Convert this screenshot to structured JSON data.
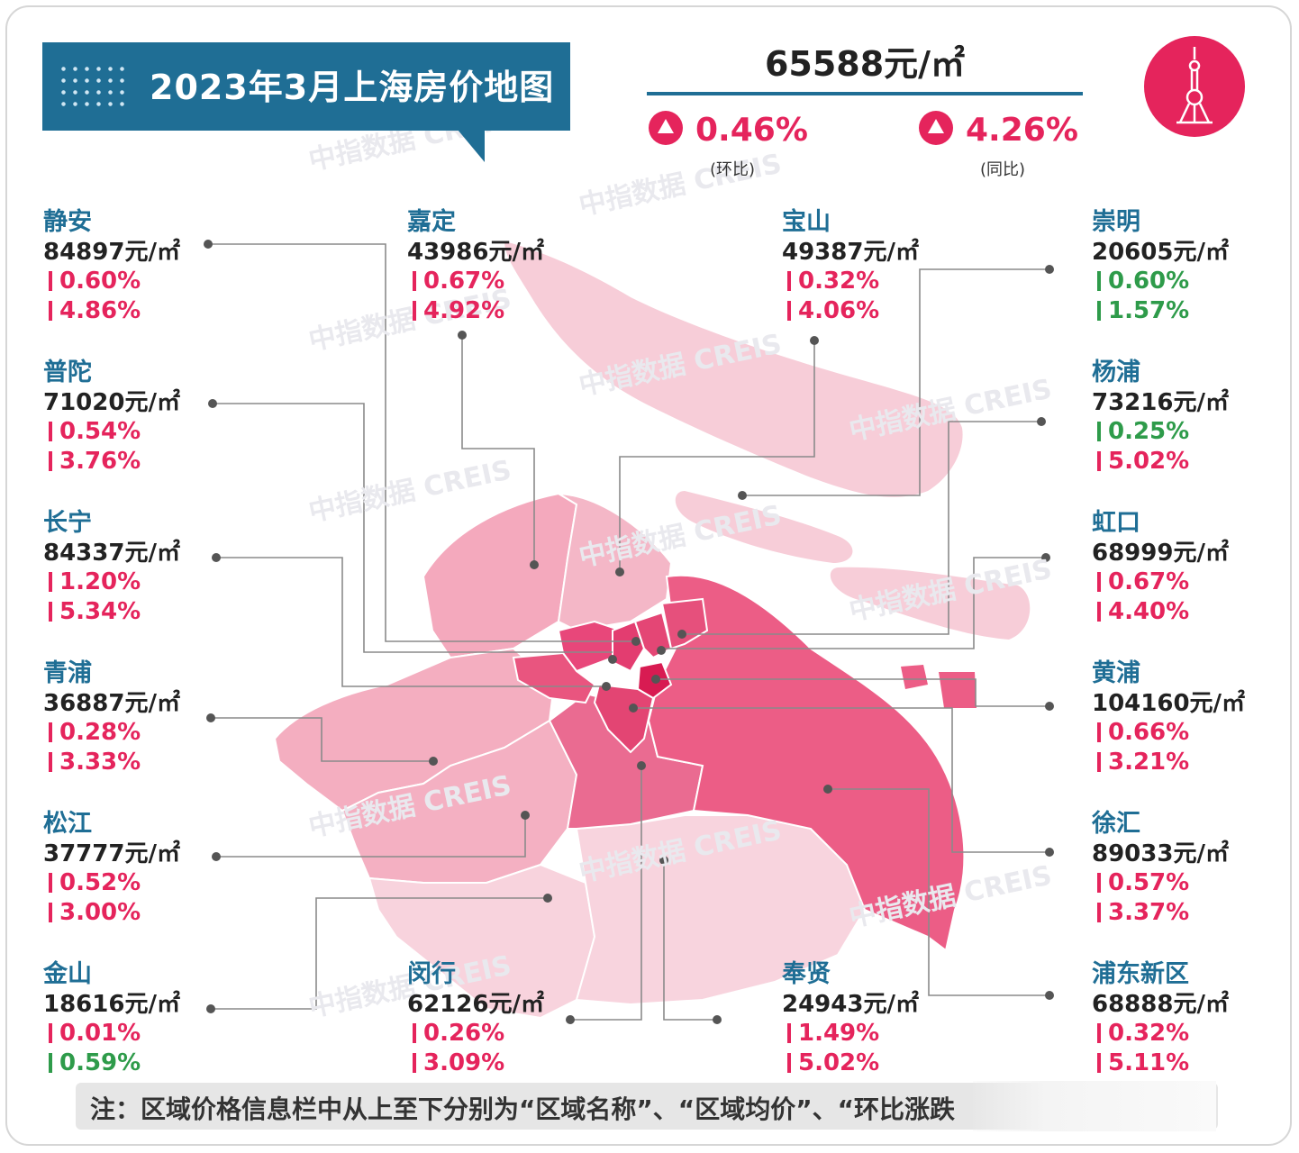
{
  "header": {
    "title": "2023年3月上海房价地图",
    "avg_price": "65588元/㎡",
    "mom": "0.46%",
    "mom_label": "(环比)",
    "yoy": "4.26%",
    "yoy_label": "(同比)"
  },
  "colors": {
    "accent_blue": "#1f6e95",
    "up_red": "#e5245c",
    "down_green": "#2e9b4a"
  },
  "watermark": "中指数据 CREIS",
  "districts": [
    {
      "name": "静安",
      "price": "84897元/㎡",
      "mom": "0.60%",
      "mom_dir": "up",
      "yoy": "4.86%",
      "yoy_dir": "up"
    },
    {
      "name": "普陀",
      "price": "71020元/㎡",
      "mom": "0.54%",
      "mom_dir": "up",
      "yoy": "3.76%",
      "yoy_dir": "up"
    },
    {
      "name": "长宁",
      "price": "84337元/㎡",
      "mom": "1.20%",
      "mom_dir": "up",
      "yoy": "5.34%",
      "yoy_dir": "up"
    },
    {
      "name": "青浦",
      "price": "36887元/㎡",
      "mom": "0.28%",
      "mom_dir": "up",
      "yoy": "3.33%",
      "yoy_dir": "up"
    },
    {
      "name": "松江",
      "price": "37777元/㎡",
      "mom": "0.52%",
      "mom_dir": "up",
      "yoy": "3.00%",
      "yoy_dir": "up"
    },
    {
      "name": "金山",
      "price": "18616元/㎡",
      "mom": "0.01%",
      "mom_dir": "up",
      "yoy": "0.59%",
      "yoy_dir": "down"
    },
    {
      "name": "嘉定",
      "price": "43986元/㎡",
      "mom": "0.67%",
      "mom_dir": "up",
      "yoy": "4.92%",
      "yoy_dir": "up"
    },
    {
      "name": "闵行",
      "price": "62126元/㎡",
      "mom": "0.26%",
      "mom_dir": "up",
      "yoy": "3.09%",
      "yoy_dir": "up"
    },
    {
      "name": "宝山",
      "price": "49387元/㎡",
      "mom": "0.32%",
      "mom_dir": "up",
      "yoy": "4.06%",
      "yoy_dir": "up"
    },
    {
      "name": "奉贤",
      "price": "24943元/㎡",
      "mom": "1.49%",
      "mom_dir": "up",
      "yoy": "5.02%",
      "yoy_dir": "up"
    },
    {
      "name": "崇明",
      "price": "20605元/㎡",
      "mom": "0.60%",
      "mom_dir": "down",
      "yoy": "1.57%",
      "yoy_dir": "down"
    },
    {
      "name": "杨浦",
      "price": "73216元/㎡",
      "mom": "0.25%",
      "mom_dir": "down",
      "yoy": "5.02%",
      "yoy_dir": "up"
    },
    {
      "name": "虹口",
      "price": "68999元/㎡",
      "mom": "0.67%",
      "mom_dir": "up",
      "yoy": "4.40%",
      "yoy_dir": "up"
    },
    {
      "name": "黄浦",
      "price": "104160元/㎡",
      "mom": "0.66%",
      "mom_dir": "up",
      "yoy": "3.21%",
      "yoy_dir": "up"
    },
    {
      "name": "徐汇",
      "price": "89033元/㎡",
      "mom": "0.57%",
      "mom_dir": "up",
      "yoy": "3.37%",
      "yoy_dir": "up"
    },
    {
      "name": "浦东新区",
      "price": "68888元/㎡",
      "mom": "0.32%",
      "mom_dir": "up",
      "yoy": "5.11%",
      "yoy_dir": "up"
    }
  ],
  "note": "注：区域价格信息栏中从上至下分别为“区域名称”、“区域均价”、“环比涨跌"
}
